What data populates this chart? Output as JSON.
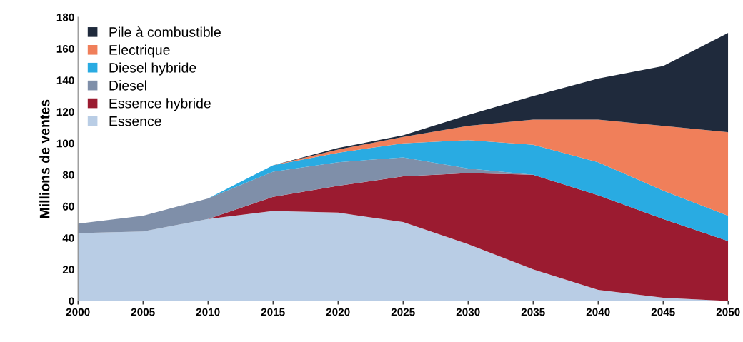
{
  "chart_data": {
    "type": "area",
    "stacked": true,
    "ylabel": "Millions de ventes",
    "x": [
      2000,
      2005,
      2010,
      2015,
      2020,
      2025,
      2030,
      2035,
      2040,
      2045,
      2050
    ],
    "series": [
      {
        "name": "Essence",
        "color": "#b9cde5",
        "values": [
          43,
          44,
          52,
          57,
          56,
          50,
          36,
          20,
          7,
          2,
          0
        ]
      },
      {
        "name": "Essence hybride",
        "color": "#9b1b30",
        "values": [
          0,
          0,
          0,
          9,
          17,
          29,
          45,
          60,
          60,
          50,
          38
        ]
      },
      {
        "name": "Diesel",
        "color": "#7f8fa9",
        "values": [
          6,
          10,
          13,
          16,
          15,
          12,
          3,
          0,
          0,
          0,
          0
        ]
      },
      {
        "name": "Diesel hybride",
        "color": "#29abe2",
        "values": [
          0,
          0,
          0,
          4,
          6,
          9,
          18,
          19,
          21,
          18,
          16
        ]
      },
      {
        "name": "Electrique",
        "color": "#f07f5a",
        "values": [
          0,
          0,
          0,
          0,
          2,
          4,
          9,
          16,
          27,
          41,
          53
        ]
      },
      {
        "name": "Pile à combustible",
        "color": "#1f2a3c",
        "values": [
          0,
          0,
          0,
          0,
          1,
          1,
          7,
          15,
          26,
          38,
          63
        ]
      }
    ],
    "xlim": [
      2000,
      2050
    ],
    "xticks": [
      2000,
      2005,
      2010,
      2015,
      2020,
      2025,
      2030,
      2035,
      2040,
      2045,
      2050
    ],
    "ylim": [
      0,
      180
    ],
    "yticks": [
      0,
      20,
      40,
      60,
      80,
      100,
      120,
      140,
      160,
      180
    ],
    "grid": false,
    "legend": "top left"
  }
}
